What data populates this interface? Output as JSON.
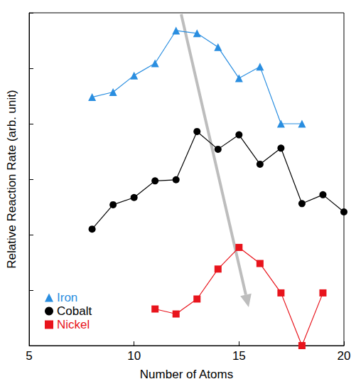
{
  "chart_data": {
    "type": "line",
    "x_label": "Number of Atoms",
    "y_label": "Relative Reaction Rate (arb. unit)",
    "xlim": [
      5,
      20
    ],
    "xticks": [
      5,
      10,
      15,
      20
    ],
    "ylim": [
      0,
      6
    ],
    "yticks": [
      0,
      1,
      2,
      3,
      4,
      5,
      6
    ],
    "tick_labels": "x",
    "grid": false,
    "legend": "lower left",
    "series": [
      {
        "name": "Iron",
        "color": "#2a8ee0",
        "marker": "triangle",
        "x": [
          8,
          9,
          10,
          11,
          12,
          13,
          14,
          15,
          16,
          17,
          18
        ],
        "values": [
          4.48,
          4.57,
          4.87,
          5.09,
          5.68,
          5.63,
          5.38,
          4.82,
          5.03,
          4.0,
          4.0
        ]
      },
      {
        "name": "Cobalt",
        "color": "#000000",
        "marker": "circle",
        "x": [
          8,
          9,
          10,
          11,
          12,
          13,
          14,
          15,
          16,
          17,
          18,
          19,
          20
        ],
        "values": [
          2.1,
          2.54,
          2.67,
          2.97,
          2.99,
          3.86,
          3.54,
          3.8,
          3.27,
          3.56,
          2.56,
          2.72,
          2.41
        ]
      },
      {
        "name": "Nickel",
        "color": "#e8141c",
        "marker": "square",
        "x": [
          11,
          12,
          13,
          14,
          15,
          16,
          17,
          18,
          19
        ],
        "values": [
          0.66,
          0.57,
          0.84,
          1.38,
          1.77,
          1.48,
          0.95,
          0.0,
          0.95
        ]
      }
    ]
  }
}
